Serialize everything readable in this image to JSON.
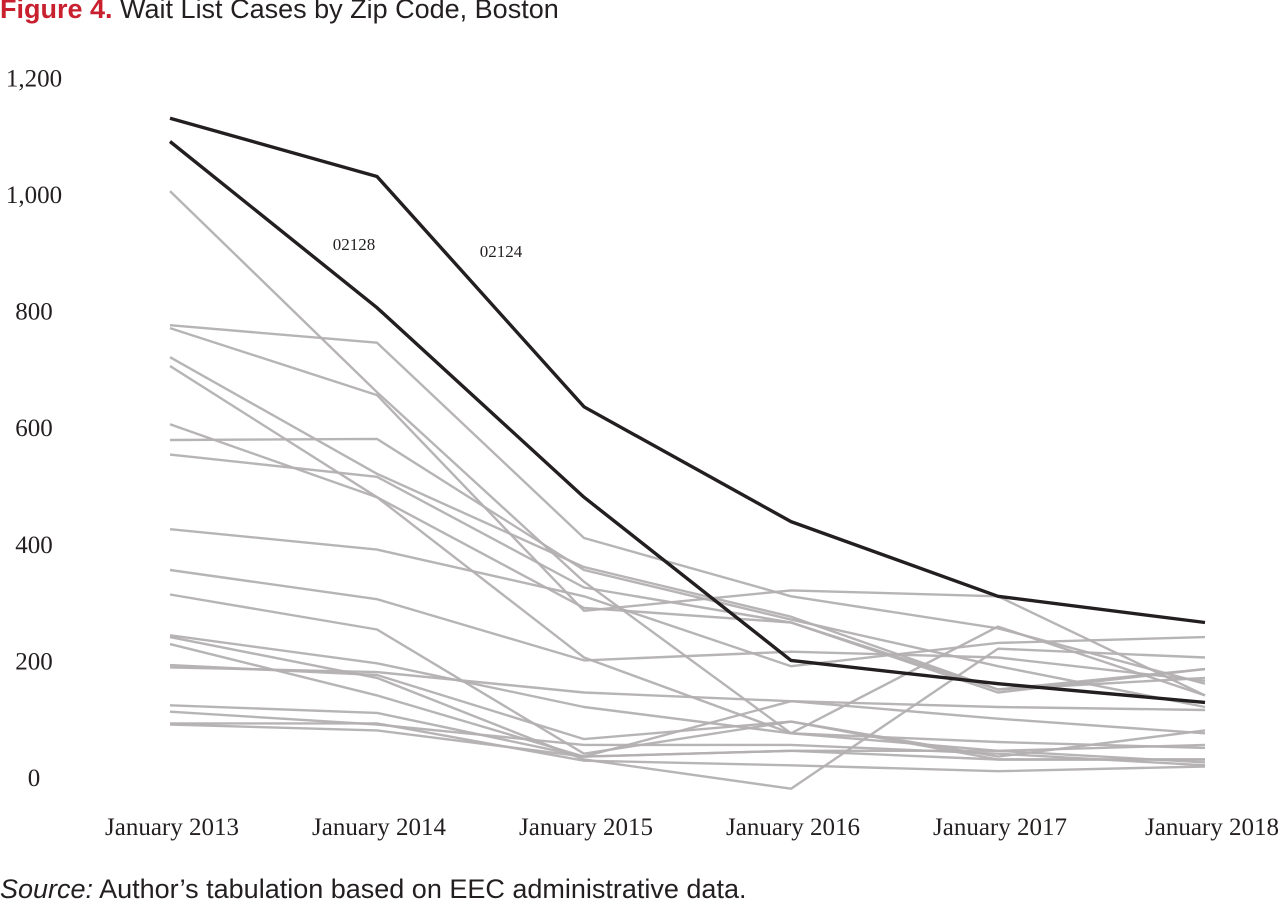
{
  "title_prefix": "Figure 4.",
  "title_text": "Wait List Cases by Zip Code, Boston",
  "source_label": "Source:",
  "source_text": "Author’s tabulation based on EEC administrative data.",
  "colors": {
    "title_accent": "#c8202f",
    "highlight_line": "#231f20",
    "other_lines": "#b3b0b1"
  },
  "chart_data": {
    "type": "line",
    "title": "Wait List Cases by Zip Code, Boston",
    "xlabel": "",
    "ylabel": "",
    "x": [
      "January 2013",
      "January 2014",
      "January 2015",
      "January 2016",
      "January 2017",
      "January 2018"
    ],
    "ylim": [
      0,
      1200
    ],
    "yticks": [
      0,
      200,
      400,
      600,
      800,
      1000,
      1200
    ],
    "ytick_labels": [
      "0",
      "200",
      "400",
      "600",
      "800",
      "1,000",
      "1,200"
    ],
    "grid": false,
    "legend": "none",
    "series": [
      {
        "name": "02124",
        "highlight": true,
        "values": [
          1130,
          1030,
          635,
          438,
          310,
          265
        ]
      },
      {
        "name": "02128",
        "highlight": true,
        "values": [
          1090,
          805,
          480,
          200,
          160,
          128
        ]
      },
      {
        "values": [
          1005,
          660,
          335,
          75,
          258,
          140
        ]
      },
      {
        "values": [
          775,
          745,
          410,
          310,
          255,
          160
        ]
      },
      {
        "values": [
          770,
          655,
          285,
          320,
          310,
          140
        ]
      },
      {
        "values": [
          720,
          520,
          360,
          275,
          150,
          170
        ]
      },
      {
        "values": [
          705,
          480,
          290,
          265,
          150,
          185
        ]
      },
      {
        "values": [
          605,
          480,
          205,
          75,
          45,
          25
        ]
      },
      {
        "values": [
          578,
          580,
          355,
          270,
          190,
          120
        ]
      },
      {
        "values": [
          553,
          515,
          325,
          265,
          145,
          185
        ]
      },
      {
        "values": [
          425,
          390,
          310,
          190,
          230,
          240
        ]
      },
      {
        "values": [
          355,
          305,
          200,
          215,
          205,
          165
        ]
      },
      {
        "values": [
          313,
          253,
          40,
          95,
          35,
          80
        ]
      },
      {
        "values": [
          243,
          195,
          120,
          75,
          60,
          50
        ]
      },
      {
        "values": [
          240,
          170,
          30,
          -20,
          220,
          205
        ]
      },
      {
        "values": [
          228,
          140,
          35,
          130,
          100,
          75
        ]
      },
      {
        "values": [
          192,
          175,
          65,
          95,
          30,
          30
        ]
      },
      {
        "values": [
          188,
          180,
          145,
          130,
          120,
          115
        ]
      },
      {
        "values": [
          123,
          110,
          35,
          45,
          45,
          55
        ]
      },
      {
        "values": [
          112,
          90,
          55,
          55,
          40,
          20
        ]
      },
      {
        "values": [
          92,
          92,
          28,
          20,
          10,
          18
        ]
      },
      {
        "values": [
          90,
          80,
          35,
          45,
          30,
          30
        ]
      }
    ]
  }
}
